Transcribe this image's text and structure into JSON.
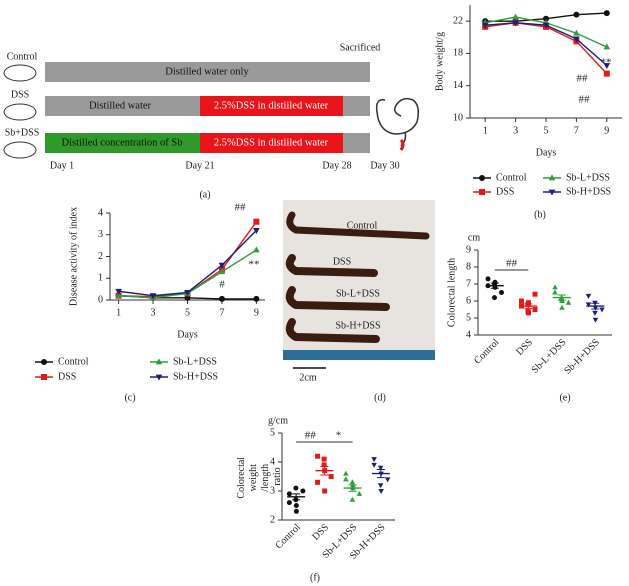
{
  "chart_data": [
    {
      "type": "line",
      "y_label": "Body weight/g",
      "x_label": "Days",
      "x": [
        1,
        3,
        5,
        7,
        9
      ],
      "xlim": [
        0,
        10
      ],
      "xticks": [
        1,
        3,
        5,
        7,
        9
      ],
      "ylim": [
        10,
        24
      ],
      "yticks": [
        10,
        14,
        18,
        22
      ],
      "series": [
        {
          "name": "Control",
          "color": "#111111",
          "marker": "circle",
          "values": [
            22,
            22,
            22.3,
            22.8,
            23
          ]
        },
        {
          "name": "DSS",
          "color": "#e31a1c",
          "marker": "square",
          "values": [
            21.3,
            21.8,
            21.3,
            19.5,
            15.5
          ]
        },
        {
          "name": "Sb-L+DSS",
          "color": "#2e9e3a",
          "marker": "triangle-up",
          "values": [
            21.8,
            22.5,
            21.8,
            20.5,
            18.8
          ]
        },
        {
          "name": "Sb-H+DSS",
          "color": "#1c1f7a",
          "marker": "triangle-down",
          "values": [
            21.5,
            21.8,
            21.5,
            19.8,
            16.5
          ]
        }
      ],
      "annotations": [
        "##",
        "**",
        "##"
      ]
    },
    {
      "type": "line",
      "y_label": "Disease activity of index",
      "x_label": "Days",
      "x": [
        1,
        3,
        5,
        7,
        9
      ],
      "xlim": [
        0.5,
        9.5
      ],
      "xticks": [
        1,
        3,
        5,
        7,
        9
      ],
      "ylim": [
        0,
        4
      ],
      "yticks": [
        0,
        1,
        2,
        3,
        4
      ],
      "series": [
        {
          "name": "Control",
          "color": "#111111",
          "marker": "circle",
          "values": [
            0.2,
            0.1,
            0.1,
            0.05,
            0.05
          ]
        },
        {
          "name": "DSS",
          "color": "#e31a1c",
          "marker": "square",
          "values": [
            0.2,
            0.15,
            0.3,
            1.4,
            3.6
          ]
        },
        {
          "name": "Sb-L+DSS",
          "color": "#2e9e3a",
          "marker": "triangle-up",
          "values": [
            0.2,
            0.1,
            0.3,
            1.3,
            2.3
          ]
        },
        {
          "name": "Sb-H+DSS",
          "color": "#1c1f7a",
          "marker": "triangle-down",
          "values": [
            0.4,
            0.2,
            0.35,
            1.6,
            3.2
          ]
        }
      ],
      "annotations": [
        "##",
        "**",
        "#"
      ]
    },
    {
      "type": "strip",
      "y_label": "Colorectal length",
      "y_unit": "cm",
      "categories": [
        "Control",
        "DSS",
        "Sb-L+DSS",
        "Sb-H+DSS"
      ],
      "colors": [
        "#111111",
        "#e31a1c",
        "#2e9e3a",
        "#1c1f7a"
      ],
      "markers": [
        "circle",
        "square",
        "triangle-up",
        "triangle-down"
      ],
      "ylim": [
        4,
        9
      ],
      "yticks": [
        4,
        5,
        6,
        7,
        8,
        9
      ],
      "values": [
        [
          7.3,
          7.0,
          6.8,
          6.5,
          6.9,
          6.2,
          7.1
        ],
        [
          6.0,
          5.8,
          5.3,
          5.5,
          5.7,
          5.4,
          5.9,
          6.4
        ],
        [
          6.8,
          6.2,
          6.0,
          5.9,
          6.5,
          6.1,
          5.6
        ],
        [
          6.3,
          5.9,
          5.6,
          5.5,
          5.8,
          5.3,
          4.9
        ]
      ],
      "means": [
        6.9,
        5.7,
        6.2,
        5.7
      ],
      "sems": [
        0.15,
        0.13,
        0.15,
        0.17
      ],
      "annotations": [
        "##"
      ]
    },
    {
      "type": "strip",
      "y_label": "Colorectal weight /length ratio",
      "y_unit": "g/cm",
      "categories": [
        "Control",
        "DSS",
        "Sb-L+DSS",
        "Sb-H+DSS"
      ],
      "colors": [
        "#111111",
        "#e31a1c",
        "#2e9e3a",
        "#1c1f7a"
      ],
      "markers": [
        "circle",
        "square",
        "triangle-up",
        "triangle-down"
      ],
      "ylim": [
        2,
        5
      ],
      "yticks": [
        2,
        3,
        4,
        5
      ],
      "values": [
        [
          2.9,
          2.7,
          2.5,
          3.0,
          2.6,
          3.1,
          2.3
        ],
        [
          4.2,
          3.9,
          3.7,
          3.5,
          3.3,
          4.1,
          3.0
        ],
        [
          3.6,
          3.3,
          3.1,
          2.9,
          3.4,
          2.7,
          3.2
        ],
        [
          4.1,
          3.8,
          3.6,
          3.4,
          3.9,
          3.2,
          3.0
        ]
      ],
      "means": [
        2.8,
        3.7,
        3.1,
        3.6
      ],
      "sems": [
        0.1,
        0.15,
        0.11,
        0.14
      ],
      "annotations": [
        "##",
        "*"
      ]
    }
  ],
  "diagram": {
    "groups": [
      "Control",
      "DSS",
      "Sb+DSS"
    ],
    "bars": [
      "Distilled water only",
      "Distilled water",
      "2.5%DSS in distiiled water",
      "Distilled concentration of Sb",
      "2.5%DSS in distiiled water"
    ],
    "sacrificed": "Sacrificed",
    "days": [
      "Day 1",
      "Day 21",
      "Day 28",
      "Day 30"
    ]
  },
  "photo": {
    "labels": [
      "Control",
      "DSS",
      "Sb-L+DSS",
      "Sb-H+DSS"
    ],
    "scale": "2cm"
  },
  "panel_labels": [
    "(a)",
    "(b)",
    "(c)",
    "(d)",
    "(e)",
    "(f)"
  ]
}
